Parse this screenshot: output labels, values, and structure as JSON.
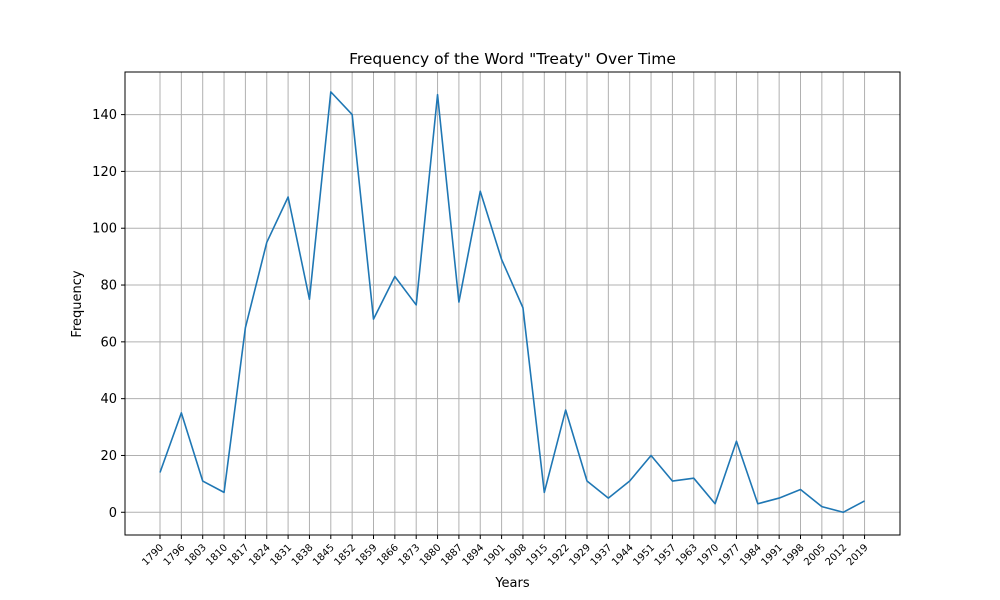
{
  "chart_data": {
    "type": "line",
    "title": "Frequency of the Word \"Treaty\" Over Time",
    "xlabel": "Years",
    "ylabel": "Frequency",
    "ylim": [
      -8,
      155
    ],
    "yticks": [
      0,
      20,
      40,
      60,
      80,
      100,
      120,
      140
    ],
    "grid": true,
    "x": [
      "1790",
      "1796",
      "1803",
      "1810",
      "1817",
      "1824",
      "1831",
      "1838",
      "1845",
      "1852",
      "1859",
      "1866",
      "1873",
      "1880",
      "1887",
      "1894",
      "1901",
      "1908",
      "1915",
      "1922",
      "1929",
      "1937",
      "1944",
      "1951",
      "1957",
      "1963",
      "1970",
      "1977",
      "1984",
      "1991",
      "1998",
      "2005",
      "2012",
      "2019"
    ],
    "series": [
      {
        "color": "#1f77b4",
        "values": [
          14,
          35,
          11,
          7,
          65,
          95,
          111,
          75,
          148,
          140,
          68,
          83,
          73,
          147,
          74,
          113,
          89,
          72,
          7,
          36,
          11,
          5,
          11,
          20,
          11,
          12,
          3,
          25,
          3,
          5,
          8,
          2,
          0,
          4
        ]
      }
    ]
  }
}
